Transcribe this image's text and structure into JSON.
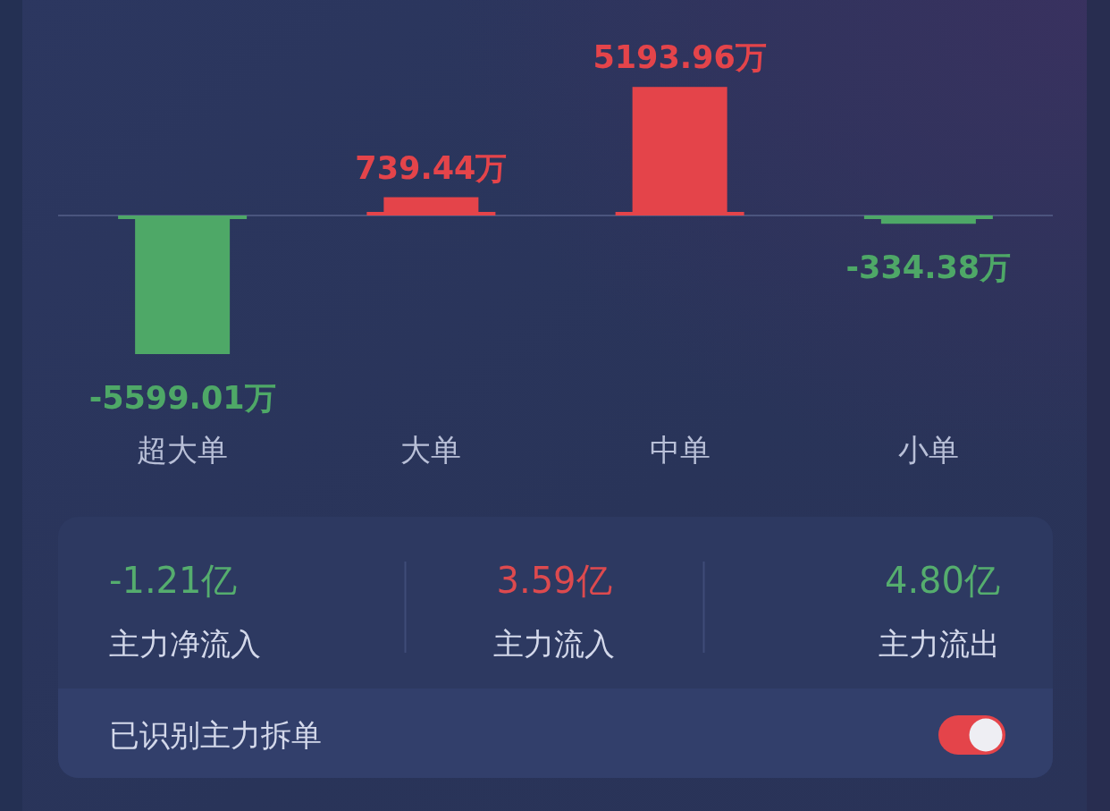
{
  "chart_data": [
    {
      "type": "bar",
      "categories": [
        "超大单",
        "大单",
        "中单",
        "小单"
      ],
      "values": [
        -5599.01,
        739.44,
        5193.96,
        -334.38
      ],
      "colors": [
        "#4ea867",
        "#e4444a",
        "#e4444a",
        "#4ea867"
      ],
      "value_labels": [
        "-5599.01万",
        "739.44万",
        "5193.96万",
        "-334.38万"
      ],
      "ref_lines": [
        {
          "axis": "y",
          "value": 0,
          "color": "#56618a"
        }
      ]
    },
    {
      "type": "other",
      "categories": [
        "主力净流入",
        "主力流入",
        "主力流出"
      ],
      "value_labels": [
        "-1.21亿",
        "3.59亿",
        "4.80亿"
      ],
      "colors": [
        "#55ad6e",
        "#dd4a4e",
        "#55ad6e"
      ],
      "annotations": [
        "已识别主力拆单"
      ]
    }
  ]
}
